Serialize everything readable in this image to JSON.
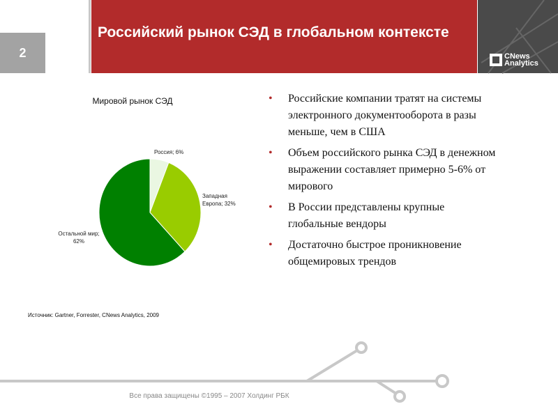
{
  "slide_number": "2",
  "header": {
    "title": "Российский рынок СЭД в глобальном контексте",
    "brand": [
      "CNews",
      "Analytics"
    ]
  },
  "chart_data": {
    "type": "pie",
    "title": "Мировой рынок СЭД",
    "values": [
      6,
      32,
      62
    ],
    "value_labels": [
      "Россия; 6%",
      "Западная Европа; 32%",
      "Остальной мир; 62%"
    ],
    "colors": [
      "#eaf7e2",
      "#99cc00",
      "#008000"
    ],
    "source": "Источник: Gartner, Forrester, CNews Analytics, 2009"
  },
  "bullets": [
    "Российские компании тратят на системы электронного документооборота в разы меньше, чем в США",
    "Объем российского рынка СЭД в денежном выражении составляет примерно 5-6% от мирового",
    "В России представлены крупные глобальные вендоры",
    "Достаточно быстрое проникновение общемировых трендов"
  ],
  "footer": "Все права защищены ©1995 – 2007 Холдинг РБК"
}
